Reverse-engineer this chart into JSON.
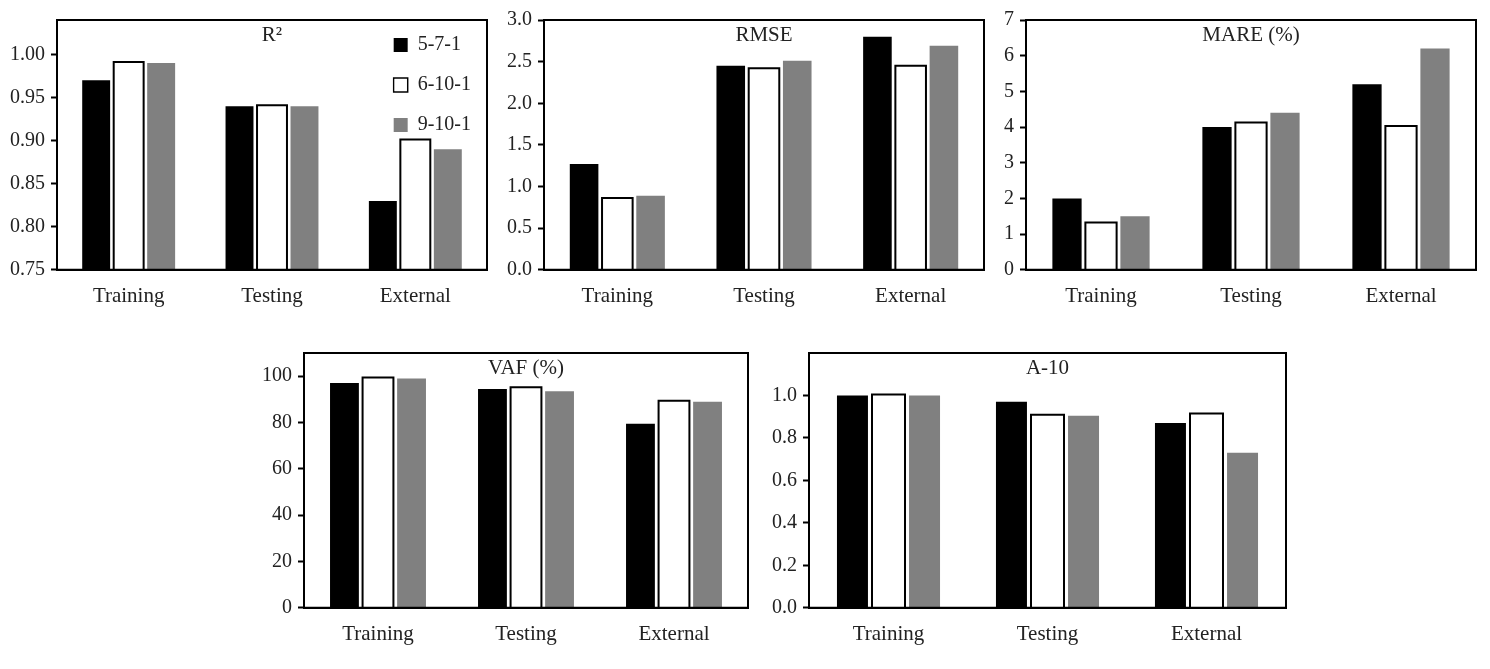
{
  "chart_data": [
    {
      "type": "bar",
      "title": "R²",
      "categories": [
        "Training",
        "Testing",
        "External"
      ],
      "ylim": [
        0.75,
        1.04
      ],
      "yticks": [
        0.75,
        {
          "value": 0.8,
          "label": "0.80"
        },
        0.85,
        {
          "value": 0.9,
          "label": "0.90"
        },
        0.95,
        {
          "value": 1,
          "label": "1.00"
        }
      ],
      "legend": "top right",
      "series": [
        {
          "name": "5-7-1",
          "color": "#000000",
          "values": [
            0.97,
            0.94,
            0.83
          ]
        },
        {
          "name": "6-10-1",
          "color": "#ffffff",
          "values": [
            0.99,
            0.94,
            0.9
          ]
        },
        {
          "name": "9-10-1",
          "color": "#808080",
          "values": [
            0.99,
            0.94,
            0.89
          ]
        }
      ]
    },
    {
      "type": "bar",
      "title": "RMSE",
      "categories": [
        "Training",
        "Testing",
        "External"
      ],
      "ylim": [
        0,
        3
      ],
      "yticks": [
        {
          "value": 0,
          "label": "0.0"
        },
        0.5,
        {
          "value": 1,
          "label": "1.0"
        },
        1.5,
        {
          "value": 2,
          "label": "2.0"
        },
        2.5,
        {
          "value": 3,
          "label": "3.0"
        }
      ],
      "series": [
        {
          "color": "#000000",
          "values": [
            1.27,
            2.45,
            2.8
          ]
        },
        {
          "color": "#ffffff",
          "values": [
            0.85,
            2.41,
            2.44
          ]
        },
        {
          "color": "#808080",
          "values": [
            0.89,
            2.51,
            2.69
          ]
        }
      ]
    },
    {
      "type": "bar",
      "title": "MARE (%)",
      "categories": [
        "Training",
        "Testing",
        "External"
      ],
      "ylim": [
        0,
        7
      ],
      "yticks": [
        0,
        1,
        2,
        3,
        4,
        5,
        6,
        7
      ],
      "series": [
        {
          "color": "#000000",
          "values": [
            2.0,
            4.0,
            5.2
          ]
        },
        {
          "color": "#ffffff",
          "values": [
            1.3,
            4.1,
            4.0
          ]
        },
        {
          "color": "#808080",
          "values": [
            1.5,
            4.4,
            6.2
          ]
        }
      ]
    },
    {
      "type": "bar",
      "title": "VAF (%)",
      "categories": [
        "Training",
        "Testing",
        "External"
      ],
      "ylim": [
        0,
        110
      ],
      "yticks": [
        0,
        20,
        40,
        60,
        80,
        100
      ],
      "series": [
        {
          "color": "#000000",
          "values": [
            97,
            94.5,
            79.5
          ]
        },
        {
          "color": "#ffffff",
          "values": [
            99,
            94.8,
            89
          ]
        },
        {
          "color": "#808080",
          "values": [
            99,
            93.5,
            89
          ]
        }
      ]
    },
    {
      "type": "bar",
      "title": "A-10",
      "categories": [
        "Training",
        "Testing",
        "External"
      ],
      "ylim": [
        0,
        1.2
      ],
      "yticks": [
        {
          "value": 0,
          "label": "0.0"
        },
        0.2,
        0.4,
        0.6,
        0.8,
        {
          "value": 1,
          "label": "1.0"
        }
      ],
      "series": [
        {
          "color": "#000000",
          "values": [
            1.0,
            0.97,
            0.87
          ]
        },
        {
          "color": "#ffffff",
          "values": [
            1.0,
            0.905,
            0.91
          ]
        },
        {
          "color": "#808080",
          "values": [
            1.0,
            0.905,
            0.73
          ]
        }
      ]
    }
  ]
}
